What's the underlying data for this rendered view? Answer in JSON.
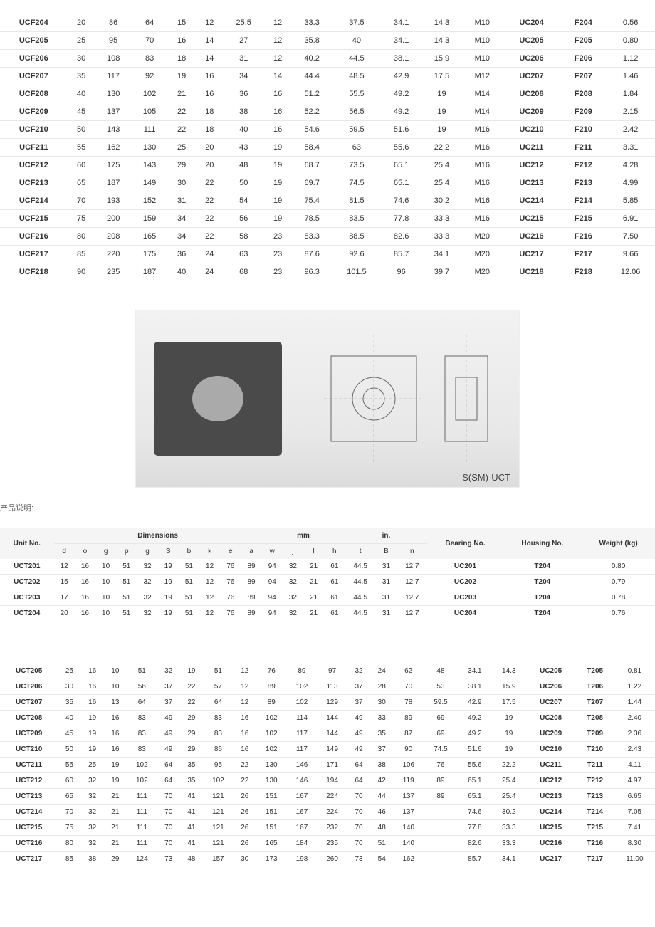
{
  "table1": {
    "rows": [
      [
        "UCF204",
        "20",
        "86",
        "64",
        "15",
        "12",
        "25.5",
        "12",
        "33.3",
        "37.5",
        "34.1",
        "14.3",
        "M10",
        "UC204",
        "F204",
        "0.56"
      ],
      [
        "UCF205",
        "25",
        "95",
        "70",
        "16",
        "14",
        "27",
        "12",
        "35.8",
        "40",
        "34.1",
        "14.3",
        "M10",
        "UC205",
        "F205",
        "0.80"
      ],
      [
        "UCF206",
        "30",
        "108",
        "83",
        "18",
        "14",
        "31",
        "12",
        "40.2",
        "44.5",
        "38.1",
        "15.9",
        "M10",
        "UC206",
        "F206",
        "1.12"
      ],
      [
        "UCF207",
        "35",
        "117",
        "92",
        "19",
        "16",
        "34",
        "14",
        "44.4",
        "48.5",
        "42.9",
        "17.5",
        "M12",
        "UC207",
        "F207",
        "1.46"
      ],
      [
        "UCF208",
        "40",
        "130",
        "102",
        "21",
        "16",
        "36",
        "16",
        "51.2",
        "55.5",
        "49.2",
        "19",
        "M14",
        "UC208",
        "F208",
        "1.84"
      ],
      [
        "UCF209",
        "45",
        "137",
        "105",
        "22",
        "18",
        "38",
        "16",
        "52.2",
        "56.5",
        "49.2",
        "19",
        "M14",
        "UC209",
        "F209",
        "2.15"
      ],
      [
        "UCF210",
        "50",
        "143",
        "111",
        "22",
        "18",
        "40",
        "16",
        "54.6",
        "59.5",
        "51.6",
        "19",
        "M16",
        "UC210",
        "F210",
        "2.42"
      ],
      [
        "UCF211",
        "55",
        "162",
        "130",
        "25",
        "20",
        "43",
        "19",
        "58.4",
        "63",
        "55.6",
        "22.2",
        "M16",
        "UC211",
        "F211",
        "3.31"
      ],
      [
        "UCF212",
        "60",
        "175",
        "143",
        "29",
        "20",
        "48",
        "19",
        "68.7",
        "73.5",
        "65.1",
        "25.4",
        "M16",
        "UC212",
        "F212",
        "4.28"
      ],
      [
        "UCF213",
        "65",
        "187",
        "149",
        "30",
        "22",
        "50",
        "19",
        "69.7",
        "74.5",
        "65.1",
        "25.4",
        "M16",
        "UC213",
        "F213",
        "4.99"
      ],
      [
        "UCF214",
        "70",
        "193",
        "152",
        "31",
        "22",
        "54",
        "19",
        "75.4",
        "81.5",
        "74.6",
        "30.2",
        "M16",
        "UC214",
        "F214",
        "5.85"
      ],
      [
        "UCF215",
        "75",
        "200",
        "159",
        "34",
        "22",
        "56",
        "19",
        "78.5",
        "83.5",
        "77.8",
        "33.3",
        "M16",
        "UC215",
        "F215",
        "6.91"
      ],
      [
        "UCF216",
        "80",
        "208",
        "165",
        "34",
        "22",
        "58",
        "23",
        "83.3",
        "88.5",
        "82.6",
        "33.3",
        "M20",
        "UC216",
        "F216",
        "7.50"
      ],
      [
        "UCF217",
        "85",
        "220",
        "175",
        "36",
        "24",
        "63",
        "23",
        "87.6",
        "92.6",
        "85.7",
        "34.1",
        "M20",
        "UC217",
        "F217",
        "9.66"
      ],
      [
        "UCF218",
        "90",
        "235",
        "187",
        "40",
        "24",
        "68",
        "23",
        "96.3",
        "101.5",
        "96",
        "39.7",
        "M20",
        "UC218",
        "F218",
        "12.06"
      ]
    ],
    "bold_cols": [
      0,
      13,
      14
    ]
  },
  "desc_label": "产品说明:",
  "ssm_label": "S(SM)-UCT",
  "table2": {
    "header1": [
      "Unit No.",
      "Dimensions",
      "mm",
      "in.",
      "Bearing No.",
      "Housing No.",
      "Weight (kg)"
    ],
    "header2": [
      "d",
      "o",
      "g",
      "p",
      "g",
      "S",
      "b",
      "k",
      "e",
      "a",
      "w",
      "j",
      "l",
      "h",
      "t",
      "B",
      "n"
    ],
    "rows": [
      [
        "UCT201",
        "12",
        "16",
        "10",
        "51",
        "32",
        "19",
        "51",
        "12",
        "76",
        "89",
        "94",
        "32",
        "21",
        "61",
        "44.5",
        "31",
        "12.7",
        "UC201",
        "T204",
        "0.80"
      ],
      [
        "UCT202",
        "15",
        "16",
        "10",
        "51",
        "32",
        "19",
        "51",
        "12",
        "76",
        "89",
        "94",
        "32",
        "21",
        "61",
        "44.5",
        "31",
        "12.7",
        "UC202",
        "T204",
        "0.79"
      ],
      [
        "UCT203",
        "17",
        "16",
        "10",
        "51",
        "32",
        "19",
        "51",
        "12",
        "76",
        "89",
        "94",
        "32",
        "21",
        "61",
        "44.5",
        "31",
        "12.7",
        "UC203",
        "T204",
        "0.78"
      ],
      [
        "UCT204",
        "20",
        "16",
        "10",
        "51",
        "32",
        "19",
        "51",
        "12",
        "76",
        "89",
        "94",
        "32",
        "21",
        "61",
        "44.5",
        "31",
        "12.7",
        "UC204",
        "T204",
        "0.76"
      ]
    ]
  },
  "table3": {
    "rows": [
      [
        "UCT205",
        "25",
        "16",
        "10",
        "51",
        "32",
        "19",
        "51",
        "12",
        "76",
        "89",
        "97",
        "32",
        "24",
        "62",
        "48",
        "34.1",
        "14.3",
        "UC205",
        "T205",
        "0.81"
      ],
      [
        "UCT206",
        "30",
        "16",
        "10",
        "56",
        "37",
        "22",
        "57",
        "12",
        "89",
        "102",
        "113",
        "37",
        "28",
        "70",
        "53",
        "38.1",
        "15.9",
        "UC206",
        "T206",
        "1.22"
      ],
      [
        "UCT207",
        "35",
        "16",
        "13",
        "64",
        "37",
        "22",
        "64",
        "12",
        "89",
        "102",
        "129",
        "37",
        "30",
        "78",
        "59.5",
        "42.9",
        "17.5",
        "UC207",
        "T207",
        "1.44"
      ],
      [
        "UCT208",
        "40",
        "19",
        "16",
        "83",
        "49",
        "29",
        "83",
        "16",
        "102",
        "114",
        "144",
        "49",
        "33",
        "89",
        "69",
        "49.2",
        "19",
        "UC208",
        "T208",
        "2.40"
      ],
      [
        "UCT209",
        "45",
        "19",
        "16",
        "83",
        "49",
        "29",
        "83",
        "16",
        "102",
        "117",
        "144",
        "49",
        "35",
        "87",
        "69",
        "49.2",
        "19",
        "UC209",
        "T209",
        "2.36"
      ],
      [
        "UCT210",
        "50",
        "19",
        "16",
        "83",
        "49",
        "29",
        "86",
        "16",
        "102",
        "117",
        "149",
        "49",
        "37",
        "90",
        "74.5",
        "51.6",
        "19",
        "UC210",
        "T210",
        "2.43"
      ],
      [
        "UCT211",
        "55",
        "25",
        "19",
        "102",
        "64",
        "35",
        "95",
        "22",
        "130",
        "146",
        "171",
        "64",
        "38",
        "106",
        "76",
        "55.6",
        "22.2",
        "UC211",
        "T211",
        "4.11"
      ],
      [
        "UCT212",
        "60",
        "32",
        "19",
        "102",
        "64",
        "35",
        "102",
        "22",
        "130",
        "146",
        "194",
        "64",
        "42",
        "119",
        "89",
        "65.1",
        "25.4",
        "UC212",
        "T212",
        "4.97"
      ],
      [
        "UCT213",
        "65",
        "32",
        "21",
        "111",
        "70",
        "41",
        "121",
        "26",
        "151",
        "167",
        "224",
        "70",
        "44",
        "137",
        "89",
        "65.1",
        "25.4",
        "UC213",
        "T213",
        "6.65"
      ],
      [
        "UCT214",
        "70",
        "32",
        "21",
        "111",
        "70",
        "41",
        "121",
        "26",
        "151",
        "167",
        "224",
        "70",
        "46",
        "137",
        "",
        "74.6",
        "30.2",
        "UC214",
        "T214",
        "7.05"
      ],
      [
        "UCT215",
        "75",
        "32",
        "21",
        "111",
        "70",
        "41",
        "121",
        "26",
        "151",
        "167",
        "232",
        "70",
        "48",
        "140",
        "",
        "77.8",
        "33.3",
        "UC215",
        "T215",
        "7.41"
      ],
      [
        "UCT216",
        "80",
        "32",
        "21",
        "111",
        "70",
        "41",
        "121",
        "26",
        "165",
        "184",
        "235",
        "70",
        "51",
        "140",
        "",
        "82.6",
        "33.3",
        "UC216",
        "T216",
        "8.30"
      ],
      [
        "UCT217",
        "85",
        "38",
        "29",
        "124",
        "73",
        "48",
        "157",
        "30",
        "173",
        "198",
        "260",
        "73",
        "54",
        "162",
        "",
        "85.7",
        "34.1",
        "UC217",
        "T217",
        "11.00"
      ]
    ]
  },
  "colors": {
    "header_bg": "#f5f5f5",
    "border": "#e8e8e8",
    "text": "#333333"
  }
}
